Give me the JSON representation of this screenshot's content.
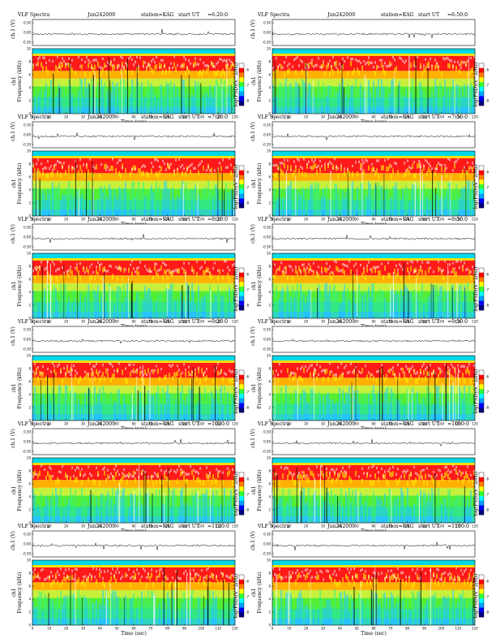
{
  "figure": {
    "panel_title": "VLF Spectra",
    "station": "station=KAG",
    "start_prefix": "start  UT",
    "trace_label": "ch.1 (V)",
    "ch_label": "ch1",
    "ylabel": "Frequency (kHz)",
    "xlabel": "Time (sec)",
    "colorbar_label": "log(PSD)(V^2/Hz)"
  },
  "panels": [
    {
      "date": "Jun242009",
      "start_ut": "=6:20:0"
    },
    {
      "date": "Jun242009",
      "start_ut": "=6:50:0"
    },
    {
      "date": "Jun242009",
      "start_ut": "=7:20:0"
    },
    {
      "date": "Jun242009",
      "start_ut": "=7:50:0"
    },
    {
      "date": "Jun242009",
      "start_ut": "=8:20:0"
    },
    {
      "date": "Jun242009",
      "start_ut": "=8:50:0"
    },
    {
      "date": "Jun242009",
      "start_ut": "=9:20:0"
    },
    {
      "date": "Jun242009",
      "start_ut": "=9:50:0"
    },
    {
      "date": "Jun242009",
      "start_ut": "=1020:0"
    },
    {
      "date": "Jun242009",
      "start_ut": "=1050:0"
    },
    {
      "date": "Jun242009",
      "start_ut": "=1120:0"
    },
    {
      "date": "Jun242009",
      "start_ut": "=1150:0"
    }
  ],
  "chart_data": {
    "type": "heatmap",
    "x_ticks": [
      "0",
      "10",
      "20",
      "30",
      "40",
      "50",
      "60",
      "70",
      "80",
      "90",
      "100",
      "110",
      "120"
    ],
    "xlim": [
      0,
      120
    ],
    "ylim": [
      0,
      10
    ],
    "y_ticks": [
      "0",
      "2",
      "4",
      "6",
      "8",
      "10"
    ],
    "trace_ticks": [
      "0.30",
      "0.00",
      "-0.30"
    ],
    "trace_ylim": [
      -0.3,
      0.3
    ],
    "colorbar_ticks": [
      "-6",
      "-7",
      "-8"
    ],
    "colorscale": [
      "#00007f",
      "#0000ff",
      "#00a0ff",
      "#00ffff",
      "#33ff33",
      "#ffff00",
      "#ff7f00",
      "#ff0000",
      "#ffffff"
    ]
  }
}
